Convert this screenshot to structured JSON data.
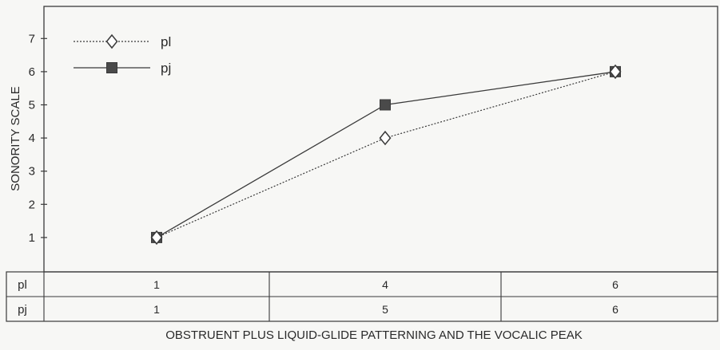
{
  "chart_data": {
    "type": "line",
    "ylabel": "SONORITY SCALE",
    "xlabel": "OBSTRUENT PLUS LIQUID-GLIDE PATTERNING AND THE VOCALIC PEAK",
    "ylim": [
      0,
      8
    ],
    "yticks": [
      1,
      2,
      3,
      4,
      5,
      6,
      7
    ],
    "grid": false,
    "legend_position": "top-left",
    "x_positions": 3,
    "series": [
      {
        "name": "pl",
        "values": [
          1,
          4,
          6
        ],
        "marker": "open-diamond",
        "line": "dotted"
      },
      {
        "name": "pj",
        "values": [
          1,
          5,
          6
        ],
        "marker": "filled-square",
        "line": "solid"
      }
    ],
    "table": {
      "rows": [
        {
          "label": "pl",
          "cells": [
            "1",
            "4",
            "6"
          ]
        },
        {
          "label": "pj",
          "cells": [
            "1",
            "5",
            "6"
          ]
        }
      ]
    }
  },
  "colors": {
    "line": "#3a3a3a",
    "marker_fill": "#4a4a4a",
    "background": "#f7f7f5"
  }
}
